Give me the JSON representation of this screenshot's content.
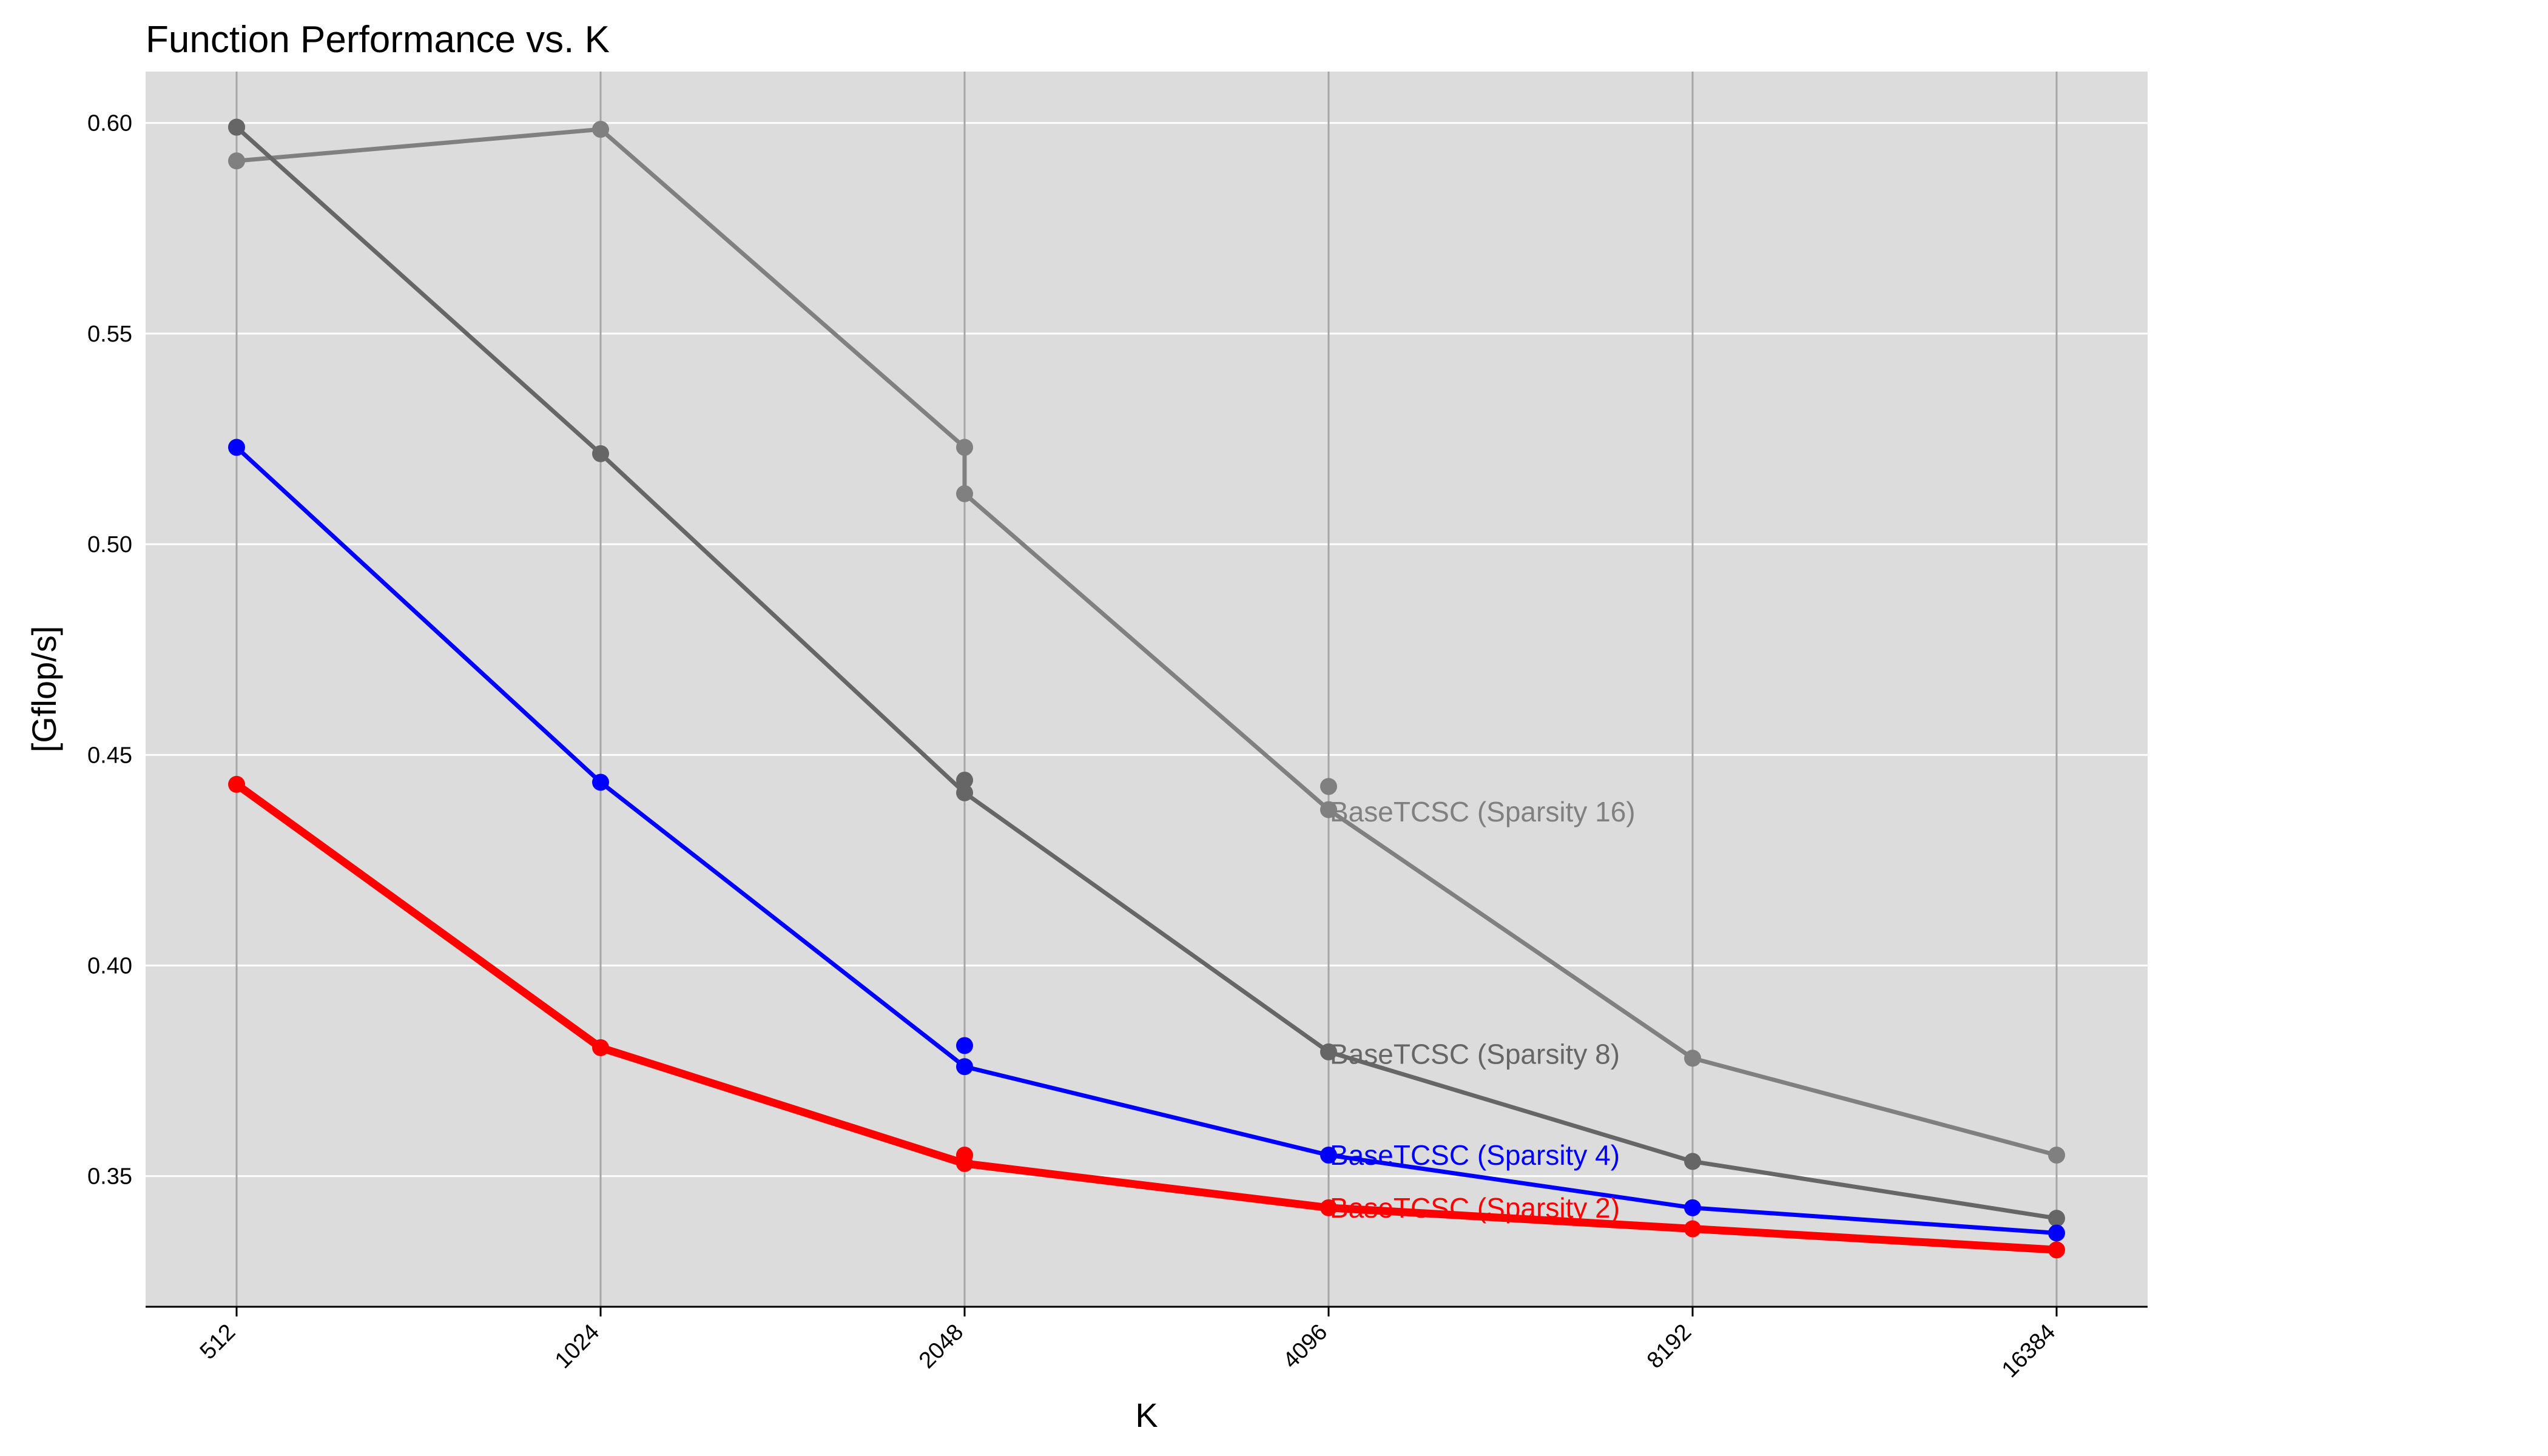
{
  "chart_data": {
    "type": "line",
    "title": "Function Performance vs. K",
    "xlabel": "K",
    "ylabel": "[Gflop/s]",
    "x_scale": "log2",
    "categories": [
      "512",
      "1024",
      "2048",
      "4096",
      "8192",
      "16384"
    ],
    "x": [
      512,
      1024,
      2048,
      4096,
      8192,
      16384
    ],
    "ylim": [
      0.319,
      0.6122
    ],
    "yticks": [
      0.35,
      0.4,
      0.45,
      0.5,
      0.55,
      0.6
    ],
    "ytick_labels": [
      "0.35",
      "0.40",
      "0.45",
      "0.50",
      "0.55",
      "0.60"
    ],
    "grid": true,
    "background": "#dcdcdc",
    "series": [
      {
        "name": "BaseTCSC (Sparsity 16)",
        "color": "#808080",
        "line_width": 7,
        "label_at_x": 4096,
        "label_y": 0.4365,
        "points": [
          {
            "x": 512,
            "y": 0.591
          },
          {
            "x": 512,
            "y": 0.599
          },
          {
            "x": 1024,
            "y": 0.5985
          },
          {
            "x": 2048,
            "y": 0.523
          },
          {
            "x": 2048,
            "y": 0.512
          },
          {
            "x": 4096,
            "y": 0.4425
          },
          {
            "x": 4096,
            "y": 0.437
          },
          {
            "x": 8192,
            "y": 0.378
          },
          {
            "x": 16384,
            "y": 0.355
          }
        ],
        "path": [
          {
            "x": 512,
            "y": 0.591
          },
          {
            "x": 1024,
            "y": 0.5985
          },
          {
            "x": 2048,
            "y": 0.523
          },
          {
            "x": 2048,
            "y": 0.512
          },
          {
            "x": 4096,
            "y": 0.437
          },
          {
            "x": 8192,
            "y": 0.378
          },
          {
            "x": 16384,
            "y": 0.355
          }
        ]
      },
      {
        "name": "BaseTCSC (Sparsity 8)",
        "color": "#666666",
        "line_width": 7,
        "label_at_x": 4096,
        "label_y": 0.379,
        "points": [
          {
            "x": 512,
            "y": 0.599
          },
          {
            "x": 1024,
            "y": 0.5215
          },
          {
            "x": 2048,
            "y": 0.444
          },
          {
            "x": 2048,
            "y": 0.441
          },
          {
            "x": 4096,
            "y": 0.3795
          },
          {
            "x": 8192,
            "y": 0.3535
          },
          {
            "x": 16384,
            "y": 0.34
          }
        ],
        "path": [
          {
            "x": 512,
            "y": 0.599
          },
          {
            "x": 1024,
            "y": 0.5215
          },
          {
            "x": 2048,
            "y": 0.441
          },
          {
            "x": 4096,
            "y": 0.3795
          },
          {
            "x": 8192,
            "y": 0.3535
          },
          {
            "x": 16384,
            "y": 0.34
          }
        ]
      },
      {
        "name": "BaseTCSC (Sparsity 4)",
        "color": "#0000ff",
        "line_width": 7,
        "label_at_x": 4096,
        "label_y": 0.355,
        "points": [
          {
            "x": 512,
            "y": 0.523
          },
          {
            "x": 1024,
            "y": 0.4435
          },
          {
            "x": 2048,
            "y": 0.381
          },
          {
            "x": 2048,
            "y": 0.376
          },
          {
            "x": 4096,
            "y": 0.355
          },
          {
            "x": 8192,
            "y": 0.3425
          },
          {
            "x": 16384,
            "y": 0.3365
          }
        ],
        "path": [
          {
            "x": 512,
            "y": 0.523
          },
          {
            "x": 1024,
            "y": 0.4435
          },
          {
            "x": 2048,
            "y": 0.376
          },
          {
            "x": 4096,
            "y": 0.355
          },
          {
            "x": 8192,
            "y": 0.3425
          },
          {
            "x": 16384,
            "y": 0.3365
          }
        ]
      },
      {
        "name": "BaseTCSC (Sparsity 2)",
        "color": "#ff0000",
        "line_width": 13,
        "label_at_x": 4096,
        "label_y": 0.3425,
        "points": [
          {
            "x": 512,
            "y": 0.443
          },
          {
            "x": 1024,
            "y": 0.3805
          },
          {
            "x": 2048,
            "y": 0.355
          },
          {
            "x": 2048,
            "y": 0.353
          },
          {
            "x": 4096,
            "y": 0.3425
          },
          {
            "x": 8192,
            "y": 0.3375
          },
          {
            "x": 16384,
            "y": 0.3325
          }
        ],
        "path": [
          {
            "x": 512,
            "y": 0.443
          },
          {
            "x": 1024,
            "y": 0.3805
          },
          {
            "x": 2048,
            "y": 0.353
          },
          {
            "x": 4096,
            "y": 0.3425
          },
          {
            "x": 8192,
            "y": 0.3375
          },
          {
            "x": 16384,
            "y": 0.3325
          }
        ]
      }
    ]
  }
}
